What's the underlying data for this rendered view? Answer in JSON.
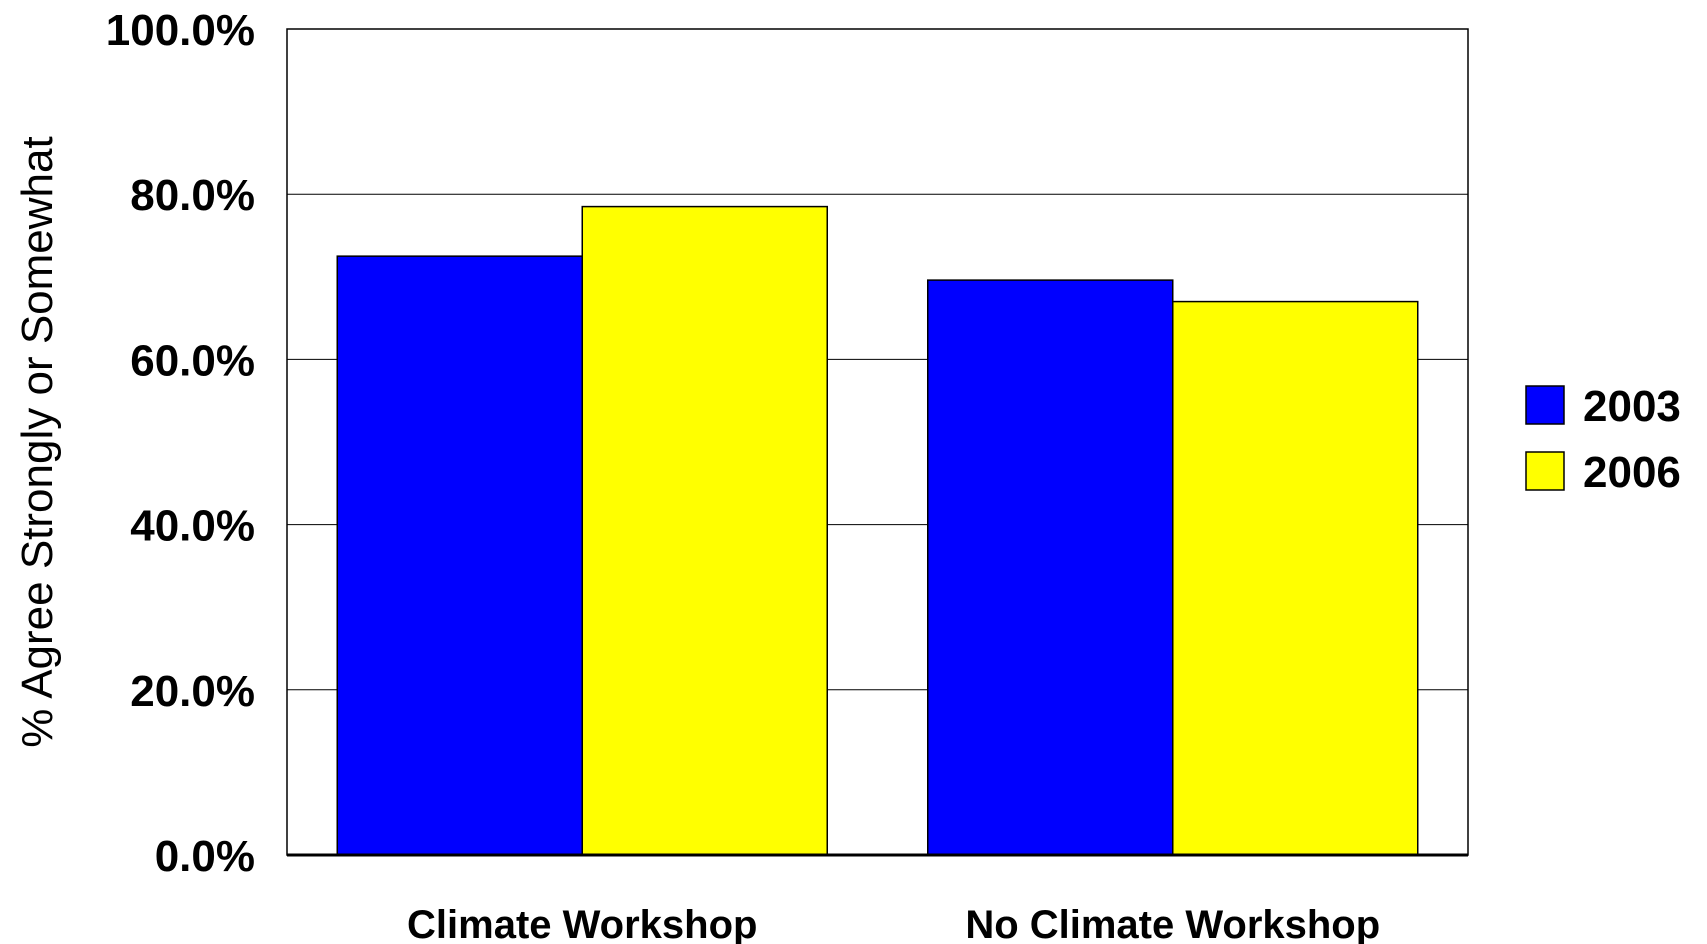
{
  "chart_data": {
    "type": "bar",
    "categories": [
      "Climate Workshop",
      "No Climate Workshop"
    ],
    "series": [
      {
        "name": "2003",
        "color": "#0000ff",
        "values": [
          72.5,
          69.6
        ]
      },
      {
        "name": "2006",
        "color": "#ffff00",
        "values": [
          78.5,
          67.0
        ]
      }
    ],
    "ylabel": "% Agree Strongly or Somewhat",
    "ylim": [
      0,
      100
    ],
    "yticks": [
      0,
      20,
      40,
      60,
      80,
      100
    ],
    "ytick_labels": [
      "0.0%",
      "20.0%",
      "40.0%",
      "60.0%",
      "80.0%",
      "100.0%"
    ],
    "grid": true,
    "legend": "right"
  }
}
